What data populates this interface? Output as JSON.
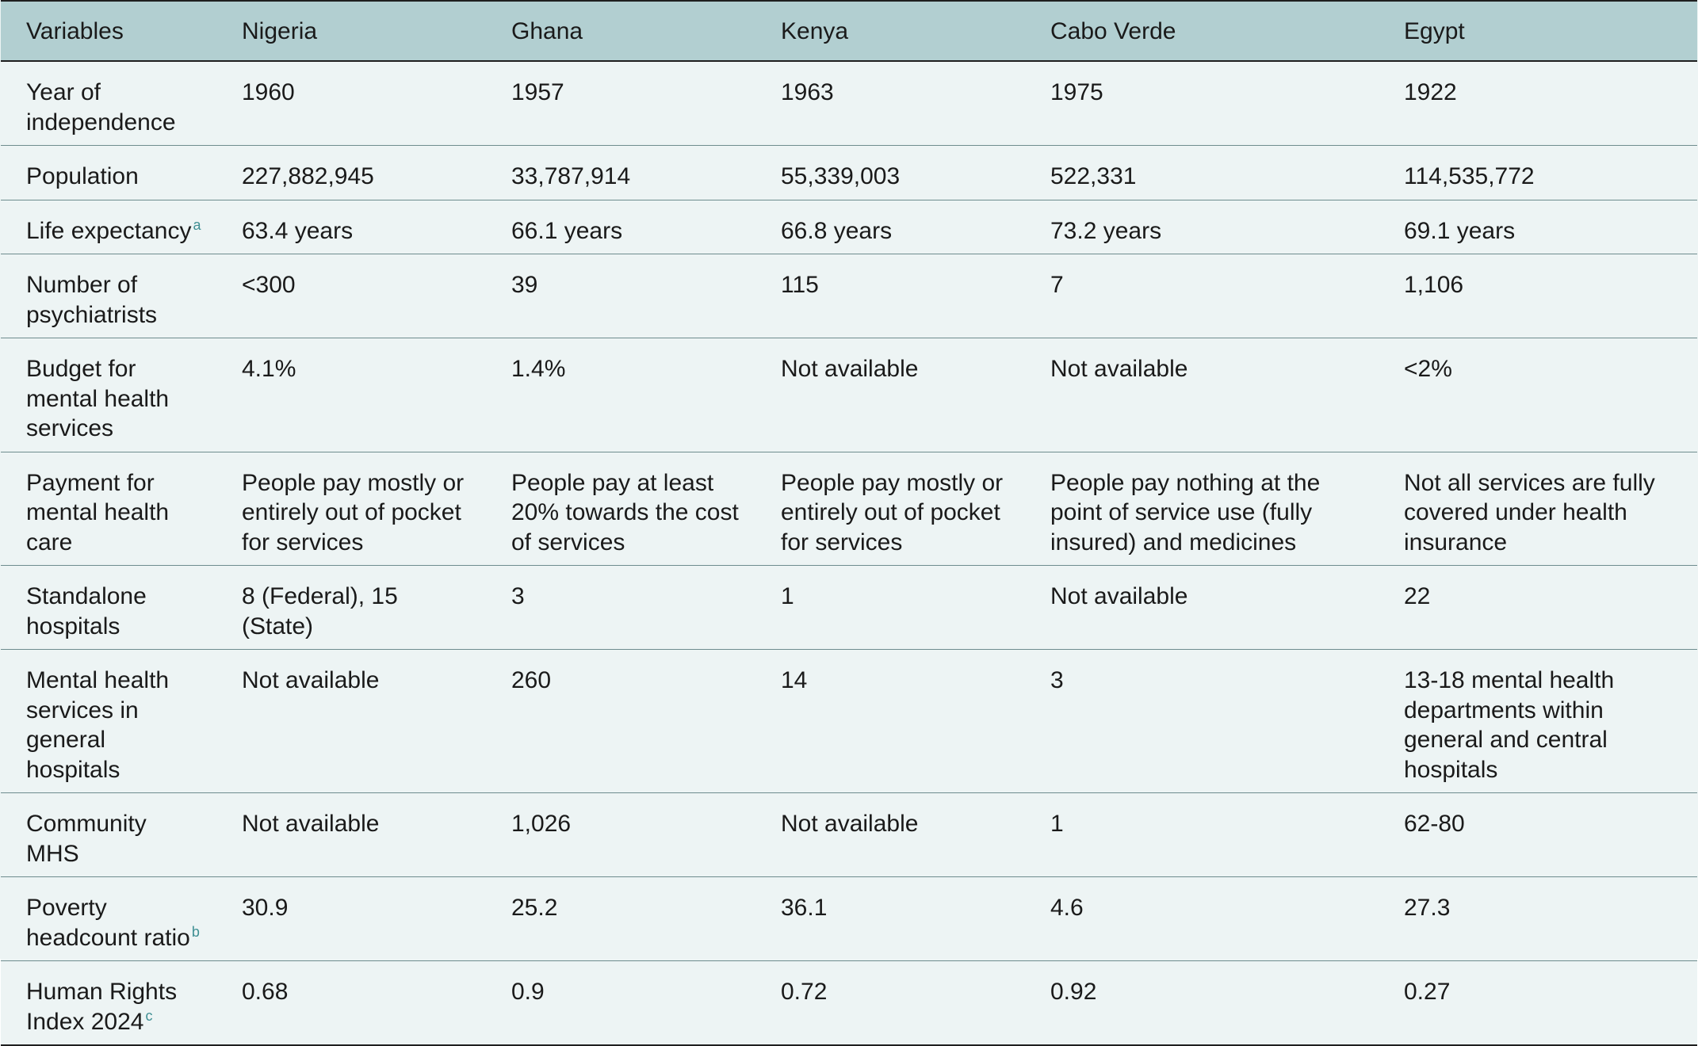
{
  "table": {
    "headers": [
      "Variables",
      "Nigeria",
      "Ghana",
      "Kenya",
      "Cabo Verde",
      "Egypt"
    ],
    "rows": [
      {
        "variable": "Year of independence",
        "footnote": "",
        "values": [
          "1960",
          "1957",
          "1963",
          "1975",
          "1922"
        ]
      },
      {
        "variable": "Population",
        "footnote": "",
        "values": [
          "227,882,945",
          "33,787,914",
          "55,339,003",
          "522,331",
          "114,535,772"
        ]
      },
      {
        "variable": "Life expectancy",
        "footnote": "a",
        "values": [
          "63.4 years",
          "66.1 years",
          "66.8 years",
          "73.2 years",
          "69.1 years"
        ]
      },
      {
        "variable": "Number of psychiatrists",
        "footnote": "",
        "values": [
          "<300",
          "39",
          "115",
          "7",
          "1,106"
        ]
      },
      {
        "variable": "Budget for mental health services",
        "footnote": "",
        "values": [
          "4.1%",
          "1.4%",
          "Not available",
          "Not available",
          "<2%"
        ]
      },
      {
        "variable": "Payment for mental health care",
        "footnote": "",
        "values": [
          "People pay mostly or entirely out of pocket for services",
          "People pay at least 20% towards the cost of services",
          "People pay mostly or entirely out of pocket for services",
          "People pay nothing at the point of service use (fully insured) and medicines",
          "Not all services are fully covered under health insurance"
        ]
      },
      {
        "variable": "Standalone hospitals",
        "footnote": "",
        "values": [
          "8 (Federal), 15 (State)",
          "3",
          "1",
          "Not available",
          "22"
        ]
      },
      {
        "variable": "Mental health services in general hospitals",
        "footnote": "",
        "values": [
          "Not available",
          "260",
          "14",
          "3",
          "13-18 mental health departments within general and central hospitals"
        ]
      },
      {
        "variable": "Community MHS",
        "footnote": "",
        "values": [
          "Not available",
          "1,026",
          "Not available",
          "1",
          "62-80"
        ]
      },
      {
        "variable": "Poverty headcount ratio",
        "footnote": "b",
        "values": [
          "30.9",
          "25.2",
          "36.1",
          "4.6",
          "27.3"
        ]
      },
      {
        "variable": "Human Rights Index 2024",
        "footnote": "c",
        "values": [
          "0.68",
          "0.9",
          "0.72",
          "0.92",
          "0.27"
        ]
      }
    ]
  }
}
